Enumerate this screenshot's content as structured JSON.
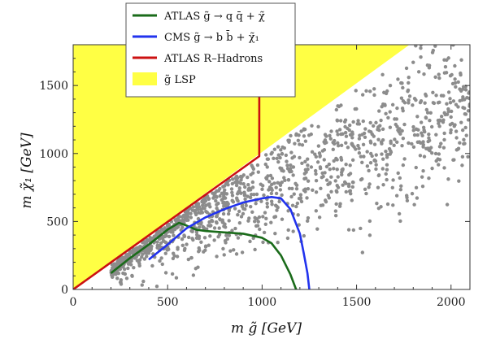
{
  "chart_data": {
    "type": "scatter",
    "xlabel": "m g̃ [GeV]",
    "ylabel": "m χ̃₁ [GeV]",
    "xlim": [
      0,
      2100
    ],
    "ylim": [
      0,
      1800
    ],
    "x_ticks": [
      "0",
      "500",
      "1000",
      "1500",
      "2000"
    ],
    "y_ticks": [
      "0",
      "500",
      "1000",
      "1500"
    ],
    "colors": {
      "atlas_gluino": "#1a6b1a",
      "cms": "#2233ee",
      "rhadrons": "#cc1111",
      "lsp_region": "#ffff44",
      "points": "#8c8c8c"
    },
    "legend": [
      {
        "key": "atlas_gluino",
        "label": "ATLAS  g̃ → q q̄ + χ̃"
      },
      {
        "key": "cms",
        "label": "CMS  g̃ → b b̄ + χ̃₁"
      },
      {
        "key": "rhadrons",
        "label": "ATLAS R–Hadrons"
      },
      {
        "key": "lsp_region",
        "label": "g̃ LSP"
      }
    ],
    "lsp_region": [
      [
        0,
        0
      ],
      [
        1780,
        1800
      ],
      [
        0,
        1800
      ]
    ],
    "series": [
      {
        "key": "atlas_gluino",
        "x": [
          200,
          300,
          400,
          500,
          560,
          600,
          650,
          700,
          800,
          900,
          1000,
          1050,
          1100,
          1150,
          1180
        ],
        "y": [
          120,
          230,
          330,
          440,
          490,
          470,
          440,
          430,
          420,
          410,
          380,
          340,
          250,
          110,
          0
        ]
      },
      {
        "key": "cms",
        "x": [
          400,
          500,
          600,
          700,
          800,
          900,
          1000,
          1050,
          1100,
          1150,
          1200,
          1220,
          1240,
          1250
        ],
        "y": [
          220,
          330,
          450,
          530,
          590,
          640,
          670,
          680,
          670,
          590,
          410,
          270,
          120,
          0
        ]
      },
      {
        "key": "rhadrons",
        "x": [
          0,
          985,
          985
        ],
        "y": [
          0,
          980,
          1520
        ]
      }
    ],
    "scatter": {
      "seed": 17,
      "count": 1300,
      "x_range": [
        200,
        2100
      ],
      "trend": {
        "slope": 0.55,
        "intercept": 160
      },
      "spread": 240
    }
  }
}
